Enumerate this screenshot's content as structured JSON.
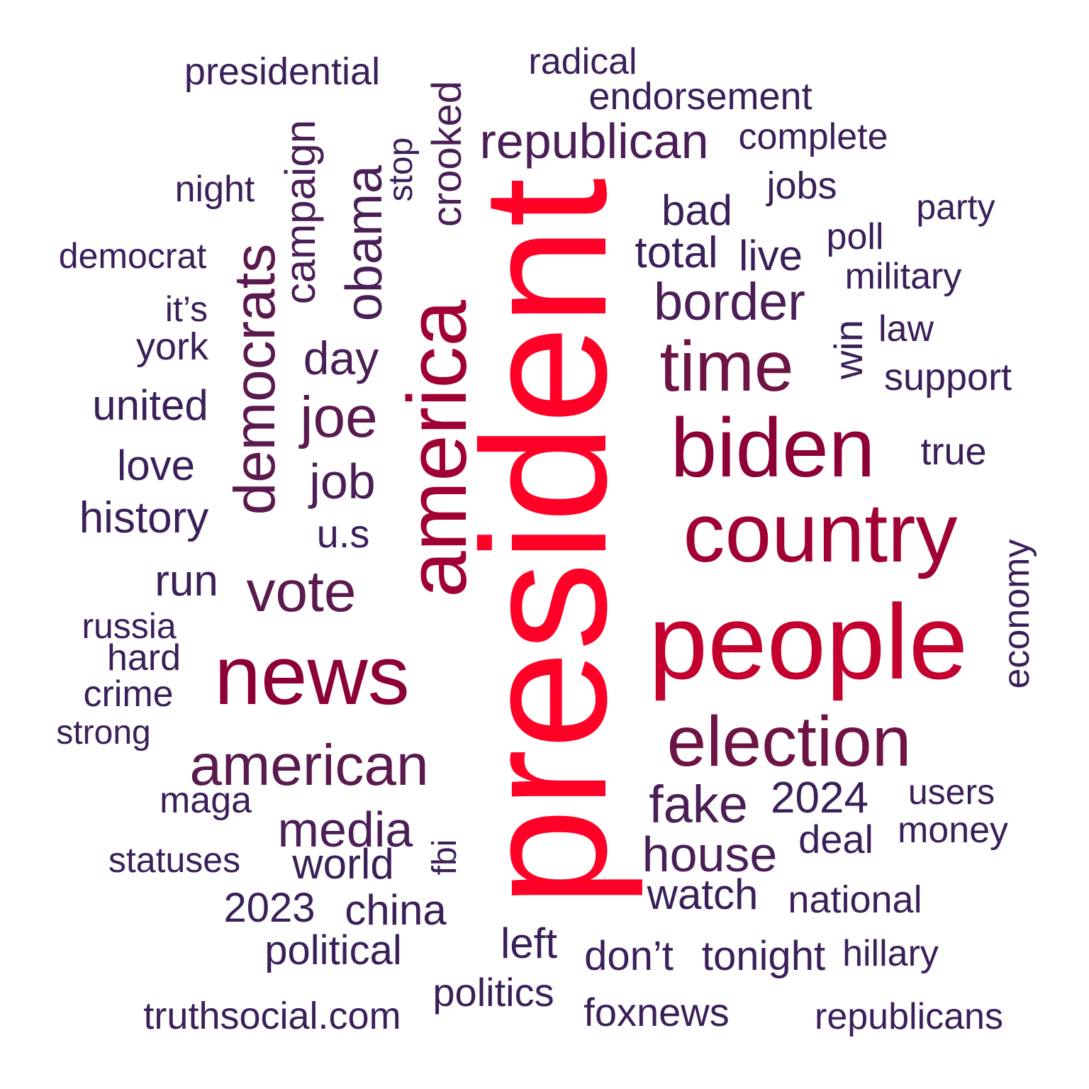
{
  "colors": {
    "c1": "#ff0026",
    "c2": "#c3002e",
    "c3": "#a10033",
    "c4": "#8c0037",
    "c5": "#6e1445",
    "c6": "#5a1a4e",
    "c7": "#4a1e56",
    "c8": "#3a2059"
  },
  "words": [
    {
      "id": "president",
      "text": "president",
      "color": "c1",
      "vertical": true
    },
    {
      "id": "people",
      "text": "people",
      "color": "c2",
      "vertical": false
    },
    {
      "id": "america",
      "text": "america",
      "color": "c3",
      "vertical": true
    },
    {
      "id": "country",
      "text": "country",
      "color": "c3",
      "vertical": false
    },
    {
      "id": "biden",
      "text": "biden",
      "color": "c4",
      "vertical": false
    },
    {
      "id": "news",
      "text": "news",
      "color": "c4",
      "vertical": false
    },
    {
      "id": "election",
      "text": "election",
      "color": "c5",
      "vertical": false
    },
    {
      "id": "time",
      "text": "time",
      "color": "c5",
      "vertical": false
    },
    {
      "id": "democrats",
      "text": "democrats",
      "color": "c6",
      "vertical": true
    },
    {
      "id": "american",
      "text": "american",
      "color": "c6",
      "vertical": false
    },
    {
      "id": "vote",
      "text": "vote",
      "color": "c6",
      "vertical": false
    },
    {
      "id": "joe",
      "text": "joe",
      "color": "c6",
      "vertical": false
    },
    {
      "id": "fake",
      "text": "fake",
      "color": "c7",
      "vertical": false
    },
    {
      "id": "border",
      "text": "border",
      "color": "c7",
      "vertical": false
    },
    {
      "id": "obama",
      "text": "obama",
      "color": "c7",
      "vertical": true
    },
    {
      "id": "house",
      "text": "house",
      "color": "c7",
      "vertical": false
    },
    {
      "id": "media",
      "text": "media",
      "color": "c7",
      "vertical": false
    },
    {
      "id": "republican",
      "text": "republican",
      "color": "c7",
      "vertical": false
    },
    {
      "id": "job",
      "text": "job",
      "color": "c7",
      "vertical": false
    },
    {
      "id": "day",
      "text": "day",
      "color": "c7",
      "vertical": false
    },
    {
      "id": "campaign",
      "text": "campaign",
      "color": "c7",
      "vertical": true
    },
    {
      "id": "2024",
      "text": "2024",
      "color": "c8",
      "vertical": false
    },
    {
      "id": "crooked",
      "text": "crooked",
      "color": "c7",
      "vertical": true
    },
    {
      "id": "history",
      "text": "history",
      "color": "c8",
      "vertical": false
    },
    {
      "id": "run",
      "text": "run",
      "color": "c8",
      "vertical": false
    },
    {
      "id": "watch",
      "text": "watch",
      "color": "c8",
      "vertical": false
    },
    {
      "id": "total",
      "text": "total",
      "color": "c8",
      "vertical": false
    },
    {
      "id": "world",
      "text": "world",
      "color": "c8",
      "vertical": false
    },
    {
      "id": "china",
      "text": "china",
      "color": "c8",
      "vertical": false
    },
    {
      "id": "united",
      "text": "united",
      "color": "c8",
      "vertical": false
    },
    {
      "id": "dont",
      "text": "don’t",
      "color": "c8",
      "vertical": false
    },
    {
      "id": "tonight",
      "text": "tonight",
      "color": "c8",
      "vertical": false
    },
    {
      "id": "left",
      "text": "left",
      "color": "c8",
      "vertical": false
    },
    {
      "id": "bad",
      "text": "bad",
      "color": "c8",
      "vertical": false
    },
    {
      "id": "live",
      "text": "live",
      "color": "c8",
      "vertical": false
    },
    {
      "id": "love",
      "text": "love",
      "color": "c8",
      "vertical": false
    },
    {
      "id": "us",
      "text": "u.s",
      "color": "c8",
      "vertical": false
    },
    {
      "id": "win",
      "text": "win",
      "color": "c8",
      "vertical": true
    },
    {
      "id": "political",
      "text": "political",
      "color": "c8",
      "vertical": false
    },
    {
      "id": "2023",
      "text": "2023",
      "color": "c8",
      "vertical": false
    },
    {
      "id": "endorsement",
      "text": "endorsement",
      "color": "c8",
      "vertical": false
    },
    {
      "id": "politics",
      "text": "politics",
      "color": "c8",
      "vertical": false
    },
    {
      "id": "deal",
      "text": "deal",
      "color": "c8",
      "vertical": false
    },
    {
      "id": "foxnews",
      "text": "foxnews",
      "color": "c8",
      "vertical": false
    },
    {
      "id": "economy",
      "text": "economy",
      "color": "c8",
      "vertical": true
    },
    {
      "id": "national",
      "text": "national",
      "color": "c8",
      "vertical": false
    },
    {
      "id": "true",
      "text": "true",
      "color": "c8",
      "vertical": false
    },
    {
      "id": "truthsocial",
      "text": "truthsocial.com",
      "color": "c8",
      "vertical": false
    },
    {
      "id": "presidential",
      "text": "presidential",
      "color": "c8",
      "vertical": false
    },
    {
      "id": "jobs",
      "text": "jobs",
      "color": "c8",
      "vertical": false
    },
    {
      "id": "support",
      "text": "support",
      "color": "c8",
      "vertical": false
    },
    {
      "id": "republicans",
      "text": "republicans",
      "color": "c8",
      "vertical": false
    },
    {
      "id": "complete",
      "text": "complete",
      "color": "c8",
      "vertical": false
    },
    {
      "id": "york",
      "text": "york",
      "color": "c8",
      "vertical": false
    },
    {
      "id": "maga",
      "text": "maga",
      "color": "c8",
      "vertical": false
    },
    {
      "id": "crime",
      "text": "crime",
      "color": "c8",
      "vertical": false
    },
    {
      "id": "hard",
      "text": "hard",
      "color": "c8",
      "vertical": false
    },
    {
      "id": "russia",
      "text": "russia",
      "color": "c8",
      "vertical": false
    },
    {
      "id": "radical",
      "text": "radical",
      "color": "c8",
      "vertical": false
    },
    {
      "id": "military",
      "text": "military",
      "color": "c8",
      "vertical": false
    },
    {
      "id": "night",
      "text": "night",
      "color": "c8",
      "vertical": false
    },
    {
      "id": "hillary",
      "text": "hillary",
      "color": "c8",
      "vertical": false
    },
    {
      "id": "money",
      "text": "money",
      "color": "c8",
      "vertical": false
    },
    {
      "id": "statuses",
      "text": "statuses",
      "color": "c8",
      "vertical": false
    },
    {
      "id": "democrat",
      "text": "democrat",
      "color": "c8",
      "vertical": false
    },
    {
      "id": "poll",
      "text": "poll",
      "color": "c8",
      "vertical": false
    },
    {
      "id": "law",
      "text": "law",
      "color": "c8",
      "vertical": false
    },
    {
      "id": "stop",
      "text": "stop",
      "color": "c8",
      "vertical": true
    },
    {
      "id": "users",
      "text": "users",
      "color": "c8",
      "vertical": false
    },
    {
      "id": "party",
      "text": "party",
      "color": "c8",
      "vertical": false
    },
    {
      "id": "strong",
      "text": "strong",
      "color": "c8",
      "vertical": false
    },
    {
      "id": "fbi",
      "text": "fbi",
      "color": "c8",
      "vertical": true
    },
    {
      "id": "its",
      "text": "it’s",
      "color": "c8",
      "vertical": false
    }
  ]
}
